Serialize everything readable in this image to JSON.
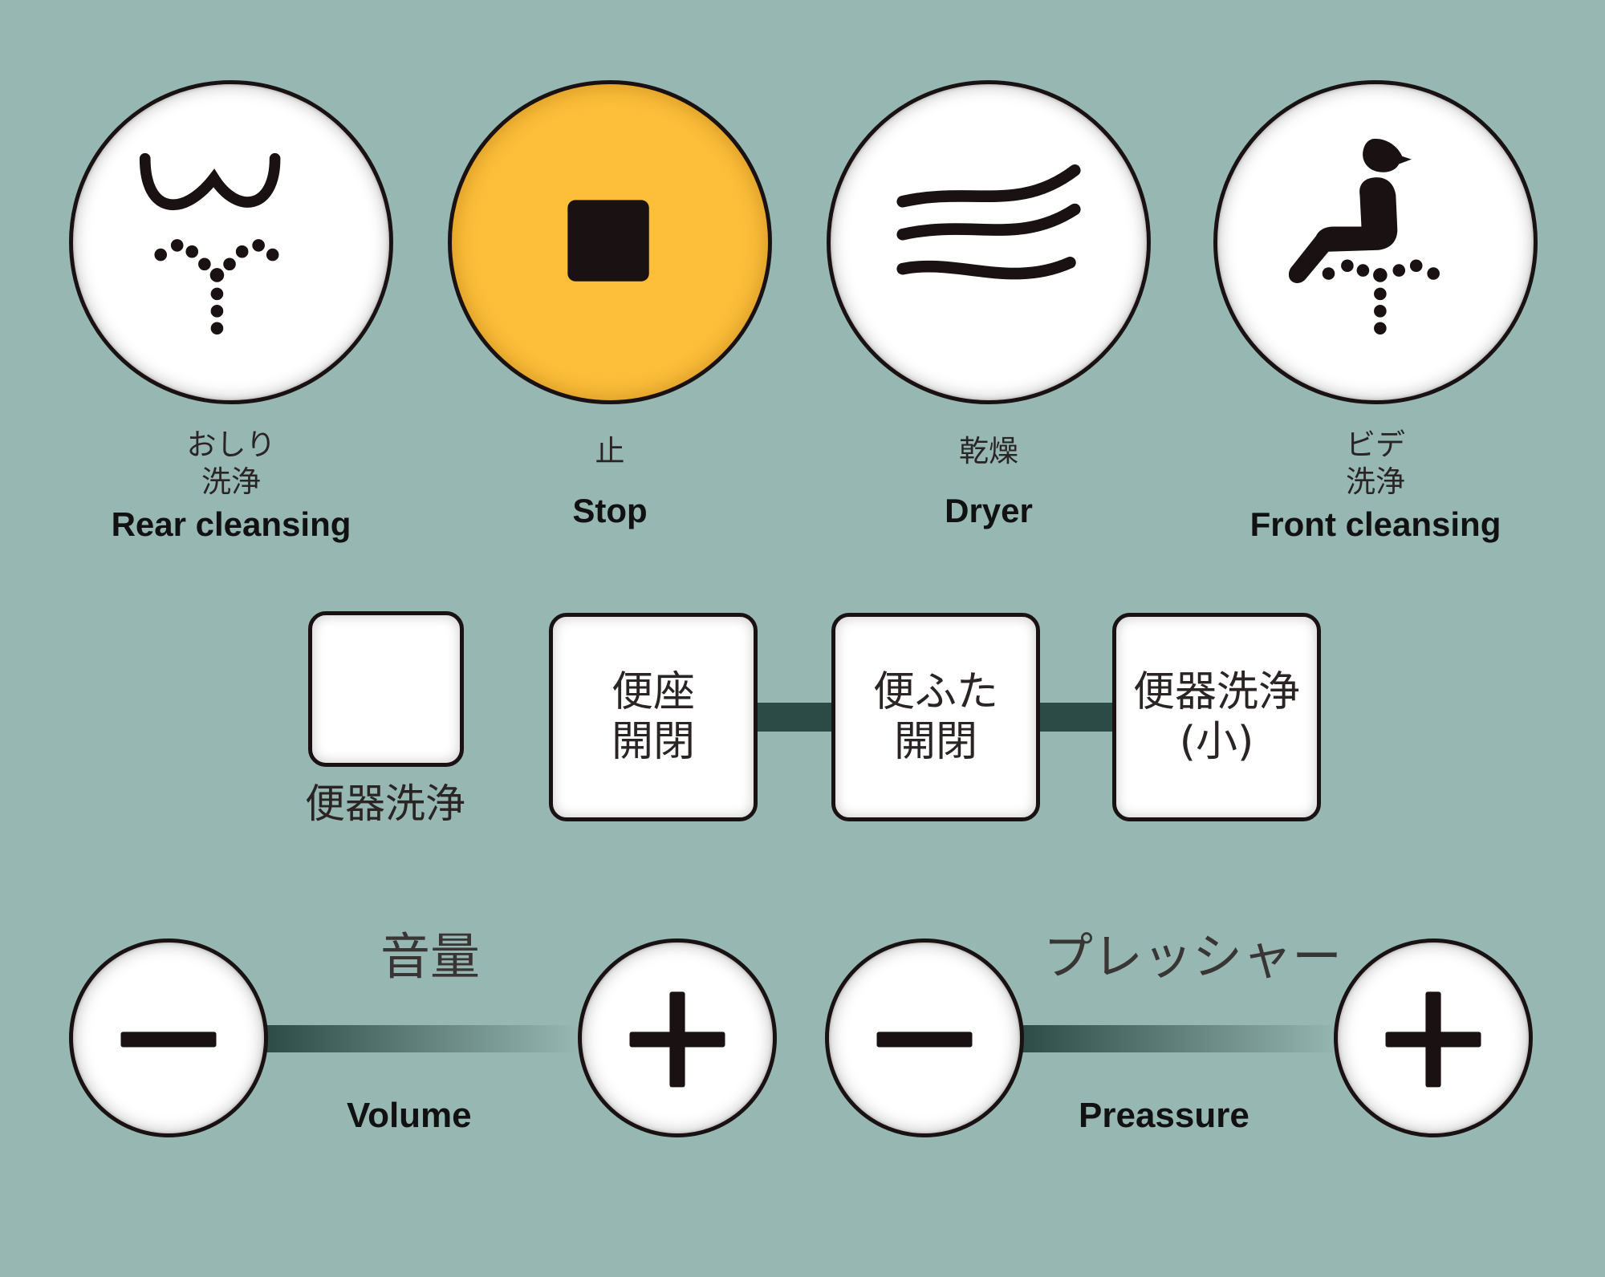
{
  "wash_buttons": [
    {
      "jp": "おしり\n洗浄",
      "en": "Rear cleansing",
      "icon": "rear-cleansing-icon"
    },
    {
      "jp": "止",
      "en": "Stop",
      "icon": "stop-square-icon"
    },
    {
      "jp": "乾燥",
      "en": "Dryer",
      "icon": "dryer-waves-icon"
    },
    {
      "jp": "ビデ\n洗浄",
      "en": "Front cleansing",
      "icon": "front-cleansing-icon"
    }
  ],
  "flush_button": {
    "label": "便器洗浄"
  },
  "function_buttons": [
    {
      "label": "便座\n開閉"
    },
    {
      "label": "便ふた\n開閉"
    },
    {
      "label": "便器洗浄\n(小)"
    }
  ],
  "volume": {
    "jp": "音量",
    "en": "Volume",
    "minus_icon": "minus-icon",
    "plus_icon": "plus-icon"
  },
  "pressure": {
    "jp": "プレッシャー",
    "en": "Preassure",
    "minus_icon": "minus-icon",
    "plus_icon": "plus-icon"
  },
  "colors": {
    "background": "#97b7b3",
    "stop_button": "#fdbf3a",
    "ink": "#1a1212",
    "connector": "#2c4a46"
  }
}
